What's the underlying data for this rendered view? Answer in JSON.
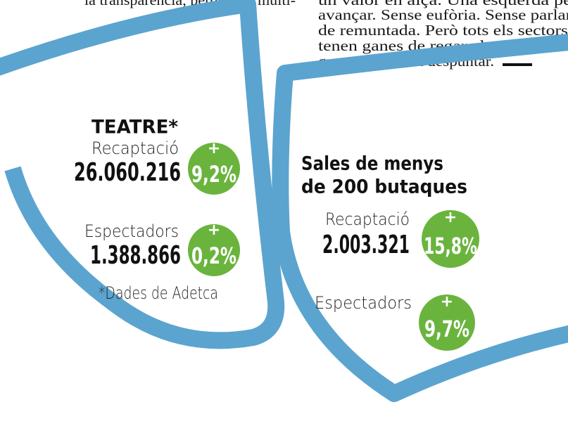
{
  "article_text": {
    "left_lines": [
      "la transparència, perquè les multi-"
    ],
    "right_lines": [
      "un valor en alça. Una esquerda pe",
      "avançar. Sense eufòria. Sense parlar",
      "de remuntada. Però tots els sectors",
      "tenen ganes de regar els esqueixos",
      "que comencen a despuntar."
    ]
  },
  "theatre": {
    "title": "TEATRE*",
    "revenue": {
      "label": "Recaptació",
      "value": "26.060.216",
      "badge": {
        "sign": "+",
        "value": "9,2%"
      }
    },
    "spectators": {
      "label": "Espectadors",
      "value": "1.388.866",
      "badge": {
        "sign": "+",
        "value": "0,2%"
      }
    },
    "note": "*Dades de Adetca"
  },
  "small_venues": {
    "title_lines": [
      "Sales de menys",
      "de 200 butaques"
    ],
    "revenue": {
      "label": "Recaptació",
      "value": "2.003.321",
      "badge": {
        "sign": "+",
        "value": "15,8%"
      }
    },
    "spectators": {
      "label": "Espectadors",
      "badge": {
        "sign": "+",
        "value": "9,7%"
      }
    }
  }
}
